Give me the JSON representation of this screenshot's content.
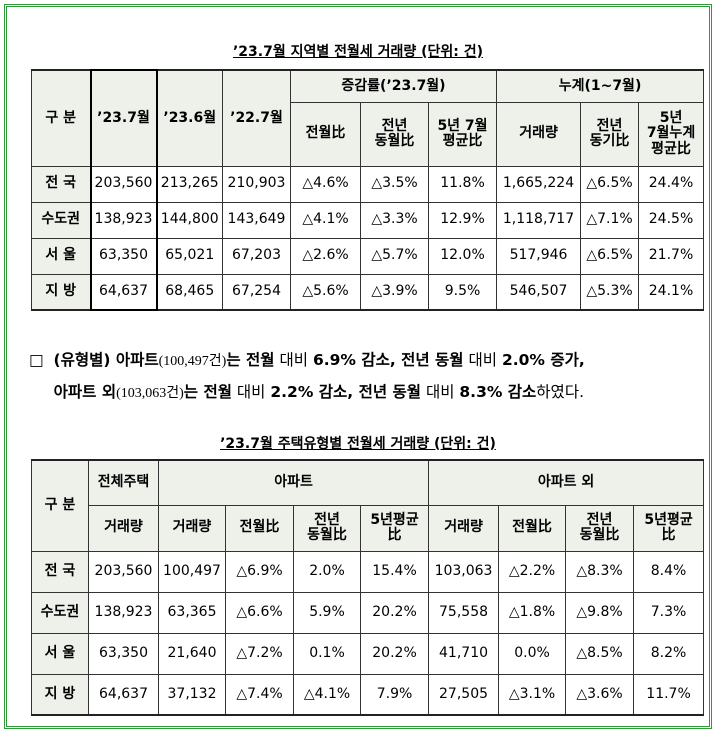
{
  "table1": {
    "title": "’23.7월 지역별 전월세 거래량 (단위: 건)",
    "header": [
      "구 분",
      "’23.7월",
      "’23.6월",
      "’22.7월",
      "증감률(’23.7월)",
      "누계(1~7월)"
    ],
    "subheader": [
      "전월比",
      "전년\n동월比",
      "5년 7월\n평균比",
      "거래량",
      "전년\n동기比",
      "5년\n7월누계\n평균比"
    ],
    "rows": [
      [
        "전 국",
        "203,560",
        "213,265",
        "210,903",
        "△4.6%",
        "△3.5%",
        "11.8%",
        "1,665,224",
        "△6.5%",
        "24.4%"
      ],
      [
        "수도권",
        "138,923",
        "144,800",
        "143,649",
        "△4.1%",
        "△3.3%",
        "12.9%",
        "1,118,717",
        "△7.1%",
        "24.5%"
      ],
      [
        "서 울",
        "63,350",
        "65,021",
        "67,203",
        "△2.6%",
        "△5.7%",
        "12.0%",
        "517,946",
        "△6.5%",
        "21.7%"
      ],
      [
        "지 방",
        "64,637",
        "68,465",
        "67,254",
        "△5.6%",
        "△3.9%",
        "9.5%",
        "546,507",
        "△5.3%",
        "24.1%"
      ]
    ]
  },
  "paragraph": {
    "bullet": "□",
    "segments": [
      "(유형별) 아파트",
      "(100,497건)",
      "는 ",
      "전월",
      " 대비 ",
      "6.9% 감소, 전년 동월",
      " 대비 ",
      "2.0% 증가,",
      "아파트 외",
      "(103,063건)",
      "는 ",
      "전월",
      " 대비 ",
      "2.2% 감소, 전년 동월",
      " 대비 ",
      "8.3% 감소",
      "하였다."
    ]
  },
  "table2": {
    "title": "’23.7월 주택유형별 전월세 거래량 (단위: 건)",
    "header": [
      "구 분",
      "전체주택",
      "아파트",
      "아파트 외"
    ],
    "subheader": [
      "거래량",
      "거래량",
      "전월比",
      "전년\n동월比",
      "5년평균\n比",
      "거래량",
      "전월比",
      "전년\n동월比",
      "5년평균\n比"
    ],
    "rows": [
      [
        "전 국",
        "203,560",
        "100,497",
        "△6.9%",
        "2.0%",
        "15.4%",
        "103,063",
        "△2.2%",
        "△8.3%",
        "8.4%"
      ],
      [
        "수도권",
        "138,923",
        "63,365",
        "△6.6%",
        "5.9%",
        "20.2%",
        "75,558",
        "△1.8%",
        "△9.8%",
        "7.3%"
      ],
      [
        "서 울",
        "63,350",
        "21,640",
        "△7.2%",
        "0.1%",
        "20.2%",
        "41,710",
        "0.0%",
        "△8.5%",
        "8.2%"
      ],
      [
        "지 방",
        "64,637",
        "37,132",
        "△7.4%",
        "△4.1%",
        "7.9%",
        "27,505",
        "△3.1%",
        "△3.6%",
        "11.7%"
      ]
    ]
  }
}
